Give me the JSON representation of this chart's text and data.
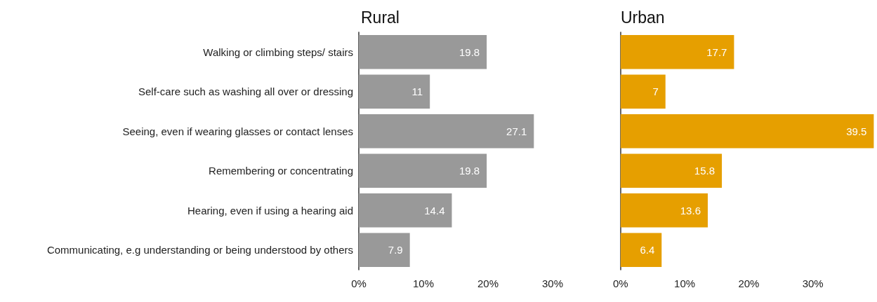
{
  "chart_data": [
    {
      "type": "bar",
      "orientation": "horizontal",
      "title": "Rural",
      "categories": [
        "Walking or climbing steps/ stairs",
        "Self-care such as washing all over or dressing",
        "Seeing, even if wearing glasses or contact lenses",
        "Remembering or concentrating",
        "Hearing, even if using a hearing aid",
        "Communicating, e.g understanding or being understood by others"
      ],
      "values": [
        19.8,
        11,
        27.1,
        19.8,
        14.4,
        7.9
      ],
      "color": "#999999",
      "xlim": [
        0,
        30
      ],
      "xticks": [
        {
          "value": 0,
          "label": "0%"
        },
        {
          "value": 10,
          "label": "10%"
        },
        {
          "value": 20,
          "label": "20%"
        },
        {
          "value": 30,
          "label": "30%"
        }
      ],
      "data_labels": true,
      "grid": false
    },
    {
      "type": "bar",
      "orientation": "horizontal",
      "title": "Urban",
      "categories": [
        null,
        null,
        null,
        null,
        null,
        null
      ],
      "values": [
        17.7,
        7,
        39.5,
        15.8,
        13.6,
        6.4
      ],
      "color": "#e69f00",
      "xlim": [
        0,
        39.5
      ],
      "xticks": [
        {
          "value": 0,
          "label": "0%"
        },
        {
          "value": 10,
          "label": "10%"
        },
        {
          "value": 20,
          "label": "20%"
        },
        {
          "value": 30,
          "label": "30%"
        }
      ],
      "data_labels": true,
      "grid": false,
      "tick_labels": "x"
    }
  ]
}
